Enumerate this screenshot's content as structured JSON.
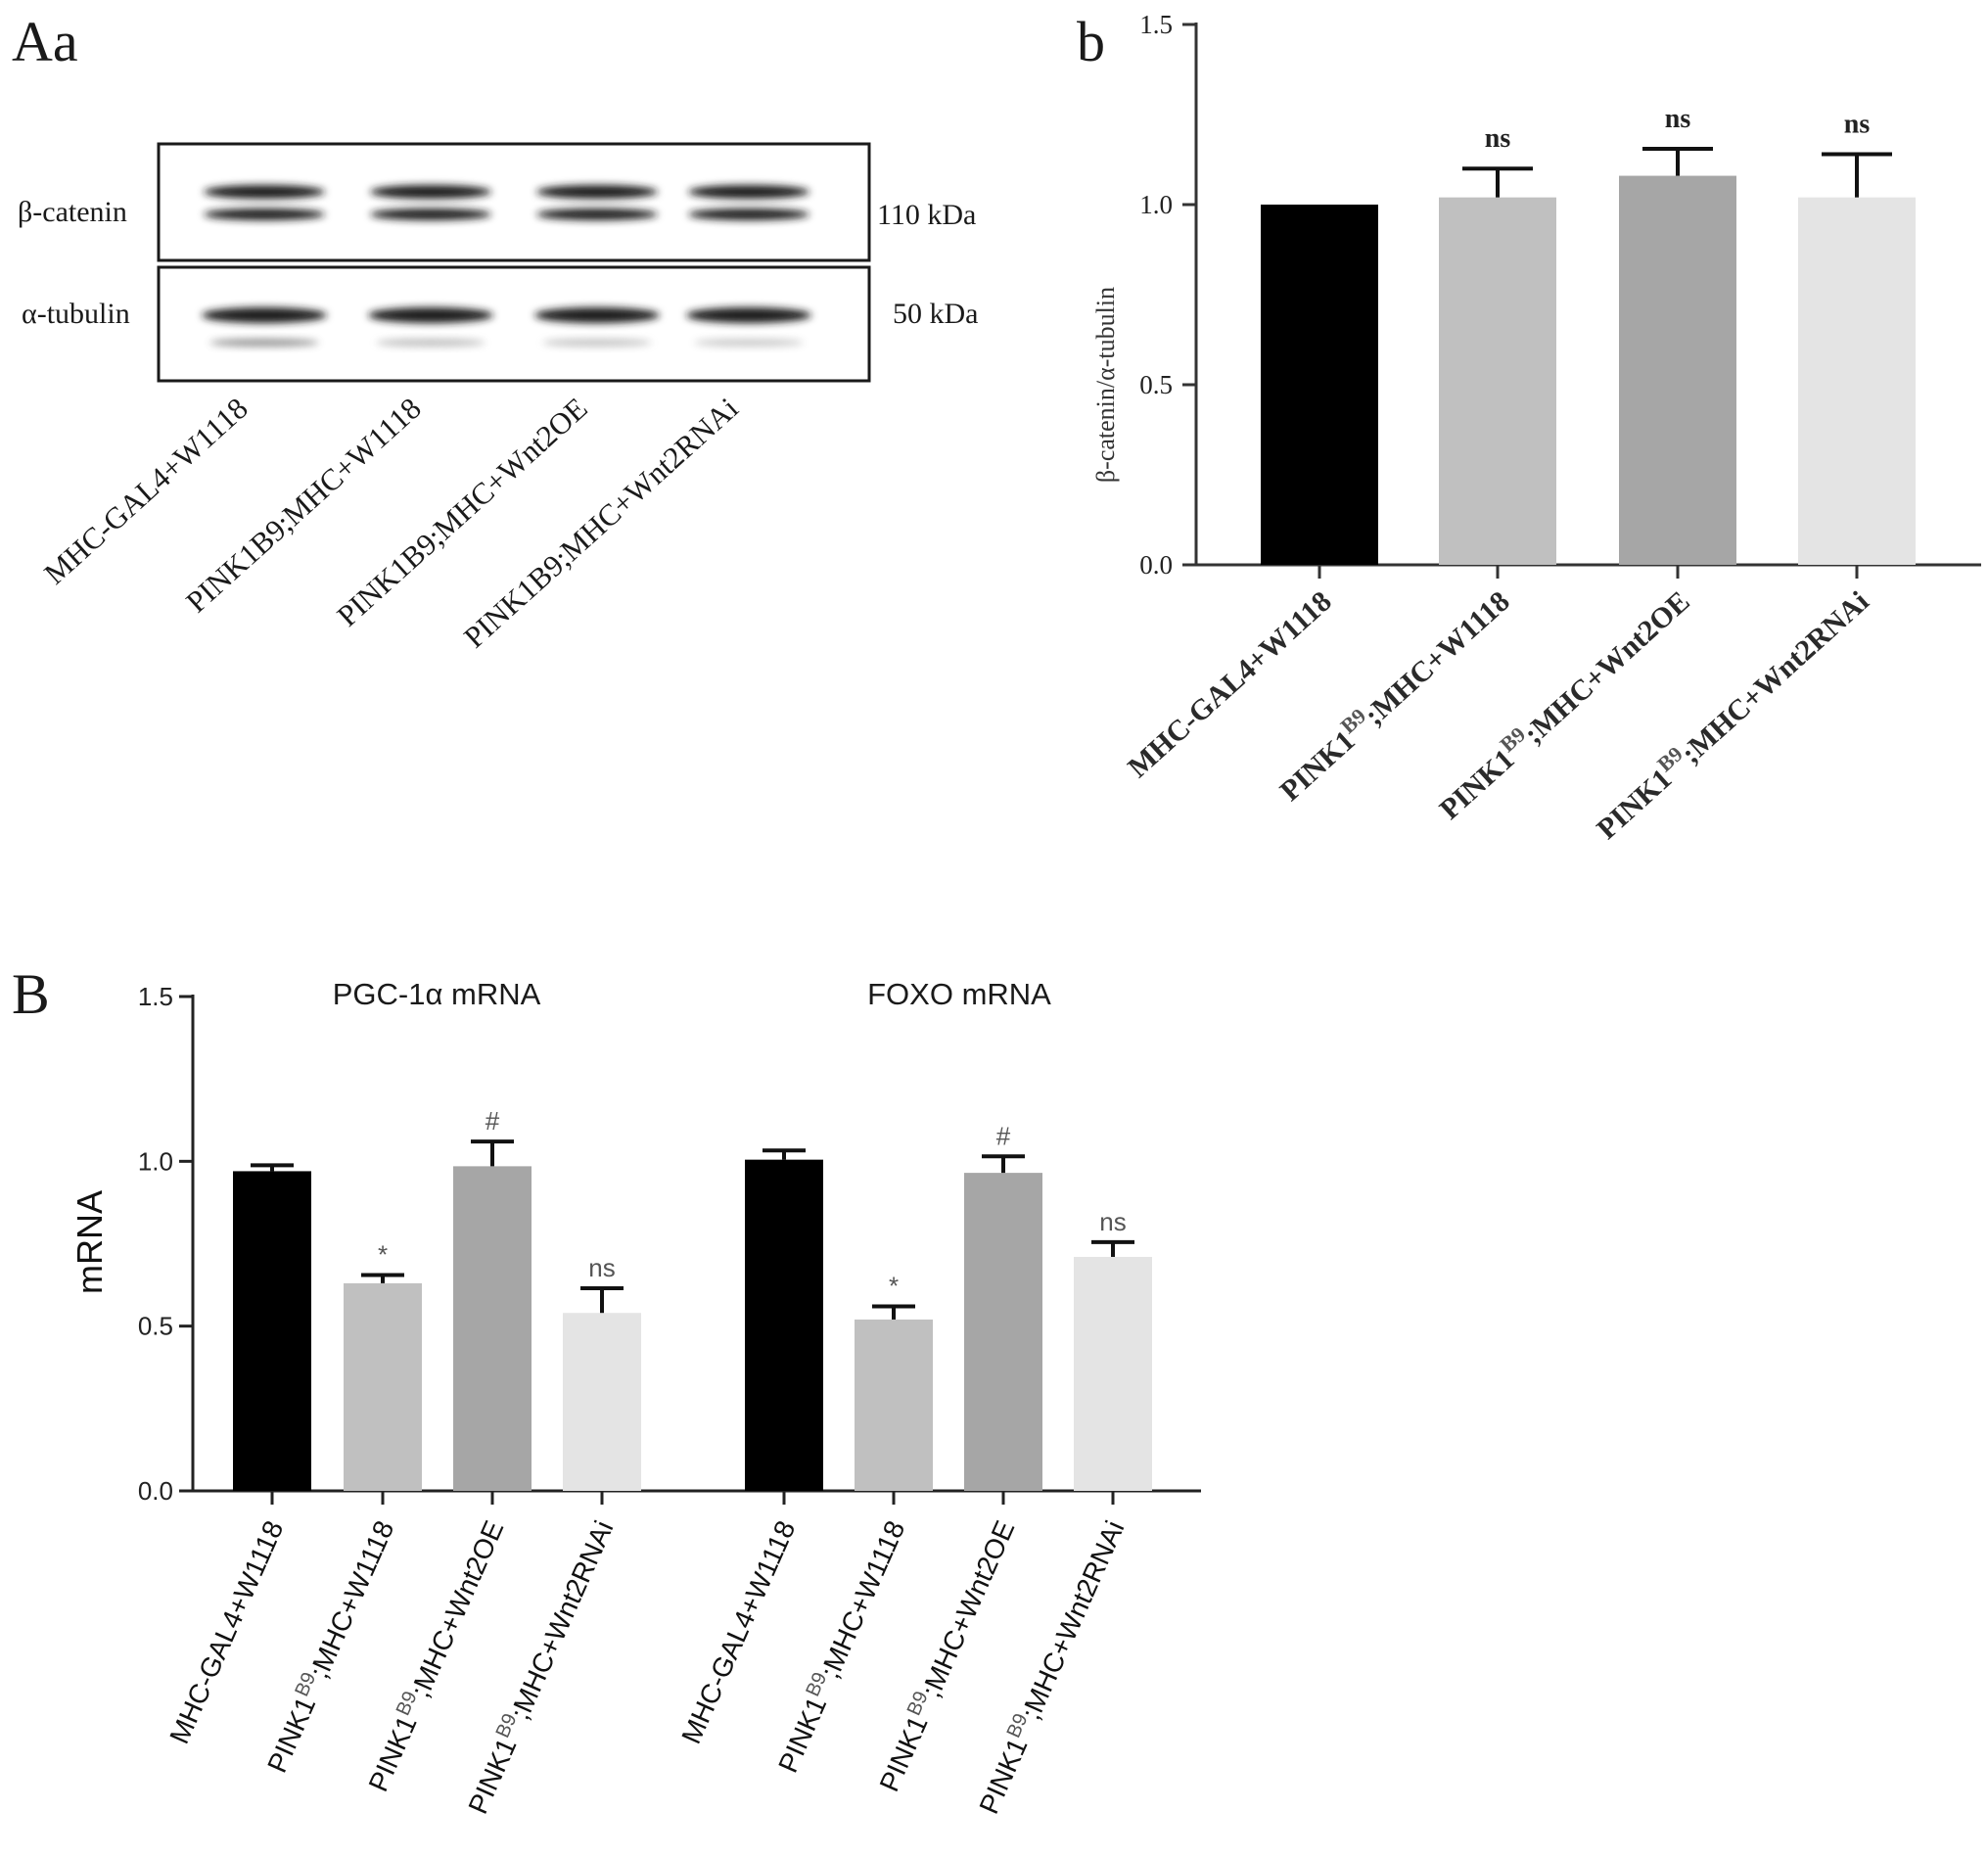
{
  "panels": {
    "Aa": {
      "label": "Aa",
      "blots": [
        {
          "protein": "β-catenin",
          "size": "110 kDa"
        },
        {
          "protein": "α-tubulin",
          "size": "50 kDa"
        }
      ],
      "lane_labels": [
        "MHC-GAL4+W1118",
        "PINK1B9;MHC+W1118",
        "PINK1B9;MHC+Wnt2OE",
        "PINK1B9;MHC+Wnt2RNAi"
      ],
      "band_colors": {
        "band": "#1e1e1e",
        "faint": "#8a8a8a",
        "frame": "#1a1a1a"
      }
    },
    "b": {
      "label": "b"
    },
    "B": {
      "label": "B"
    }
  },
  "chart_data": [
    {
      "type": "bar",
      "panel": "b",
      "categories": [
        {
          "gene": "MHC-GAL4+W1118",
          "sup": "",
          "rest": ""
        },
        {
          "gene": "PINK1",
          "sup": "B9",
          "rest": ";MHC+W1118"
        },
        {
          "gene": "PINK1",
          "sup": "B9",
          "rest": ";MHC+Wnt2OE"
        },
        {
          "gene": "PINK1",
          "sup": "B9",
          "rest": ";MHC+Wnt2RNAi"
        }
      ],
      "values": [
        1.0,
        1.02,
        1.08,
        1.02
      ],
      "errors": [
        0.0,
        0.08,
        0.075,
        0.12
      ],
      "annotations": [
        "",
        "ns",
        "ns",
        "ns"
      ],
      "colors": [
        "#000000",
        "#c0c0c0",
        "#a6a6a6",
        "#e4e4e4"
      ],
      "ylabel": "β-catenin/α-tubulin",
      "xlabel": "",
      "ylim": [
        0,
        1.5
      ],
      "yticks": [
        "0.0",
        "0.5",
        "1.0",
        "1.5"
      ]
    },
    {
      "type": "bar",
      "panel": "B",
      "ylabel": "mRNA",
      "ylim": [
        0,
        1.5
      ],
      "yticks": [
        "0.0",
        "0.5",
        "1.0",
        "1.5"
      ],
      "colors": [
        "#000000",
        "#c0c0c0",
        "#a6a6a6",
        "#e4e4e4"
      ],
      "categories": [
        {
          "gene": "MHC-GAL4+W1118",
          "sup": "",
          "rest": ""
        },
        {
          "gene": "PINK1",
          "sup": "B9",
          "rest": ";MHC+W1118"
        },
        {
          "gene": "PINK1",
          "sup": "B9",
          "rest": ";MHC+Wnt2OE"
        },
        {
          "gene": "PINK1",
          "sup": "B9",
          "rest": ";MHC+Wnt2RNAi"
        }
      ],
      "groups": [
        {
          "title": "PGC-1α mRNA",
          "values": [
            0.97,
            0.63,
            0.985,
            0.54
          ],
          "errors": [
            0.018,
            0.025,
            0.075,
            0.075
          ],
          "annotations": [
            "",
            "*",
            "#",
            "ns"
          ]
        },
        {
          "title": "FOXO mRNA",
          "values": [
            1.005,
            0.52,
            0.965,
            0.71
          ],
          "errors": [
            0.028,
            0.04,
            0.05,
            0.045
          ],
          "annotations": [
            "",
            "*",
            "#",
            "ns"
          ]
        }
      ]
    }
  ]
}
